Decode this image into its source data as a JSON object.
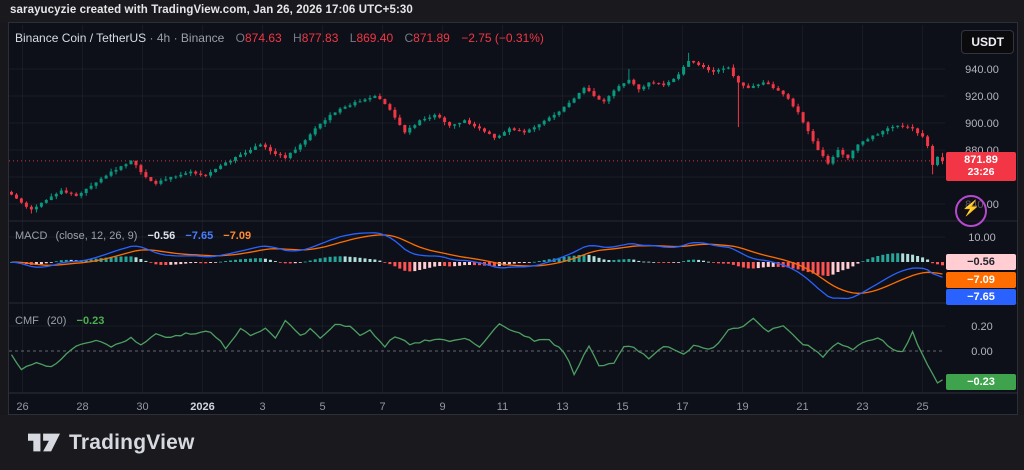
{
  "watermark": "sarayucyzie created with TradingView.com, Jan 26, 2026 17:06 UTC+5:30",
  "symbol_bar": {
    "symbol": "Binance Coin / TetherUS",
    "separator": "·",
    "interval": "4h",
    "exchange": "Binance",
    "ohlc": {
      "o_label": "O",
      "o": "874.63",
      "h_label": "H",
      "h": "877.83",
      "l_label": "L",
      "l": "869.40",
      "c_label": "C",
      "c": "871.89",
      "change": "−2.75 (−0.31%)"
    }
  },
  "currency_button": "USDT",
  "price_badge": {
    "price": "871.89",
    "countdown": "23:26"
  },
  "macd": {
    "title": "MACD",
    "params": "(close, 12, 26, 9)",
    "hist_value": "−0.56",
    "macd_value": "−7.65",
    "signal_value": "−7.09",
    "badges": {
      "hist": "−0.56",
      "signal": "−7.09",
      "macd": "−7.65"
    }
  },
  "cmf": {
    "title": "CMF",
    "params": "(20)",
    "value": "−0.23",
    "badge": "−0.23"
  },
  "footer": {
    "brand": "TradingView"
  },
  "colors": {
    "up": "#089981",
    "down": "#f23645",
    "macd_line": "#2962ff",
    "signal_line": "#ff6d00",
    "hist_grow_up": "#26a69a",
    "hist_fall_up": "#b2dfdb",
    "hist_grow_dn": "#ff5252",
    "hist_fall_dn": "#ffcdd2",
    "cmf_line": "#4e9e62",
    "cmf_badge_bg": "#3fa34d",
    "badge_hist_bg": "#ffcdd2",
    "badge_hist_text": "#1e222d",
    "axis_text": "#b2b5be",
    "grid": "rgba(170,180,200,0.07)",
    "price_line": "#f23645"
  },
  "chart_data": {
    "type": "candlestick",
    "title": "Binance Coin / TetherUS · 4h · Binance",
    "legend_position": "top-left",
    "grid": "faint",
    "bars_total": 188,
    "x_axis": {
      "tick_labels": [
        "26",
        "28",
        "30",
        "2026",
        "3",
        "5",
        "7",
        "9",
        "11",
        "13",
        "15",
        "17",
        "19",
        "21",
        "23",
        "25"
      ],
      "year_tick_index": 3,
      "bars_per_tick": 12
    },
    "price_pane": {
      "ylim": [
        833,
        955
      ],
      "y_ticks": [
        940,
        920,
        900,
        880,
        840
      ],
      "y_tick_labels": [
        "940.00",
        "920.00",
        "900.00",
        "880.00",
        "840.00"
      ],
      "current_price": 871.89,
      "last_bar": {
        "open": 874.63,
        "high": 877.83,
        "low": 869.4,
        "close": 871.89
      },
      "close_keyframes": [
        [
          0,
          847
        ],
        [
          2,
          841
        ],
        [
          4,
          836
        ],
        [
          7,
          843
        ],
        [
          10,
          850
        ],
        [
          13,
          846
        ],
        [
          17,
          856
        ],
        [
          20,
          864
        ],
        [
          24,
          872
        ],
        [
          27,
          860
        ],
        [
          29,
          855
        ],
        [
          32,
          860
        ],
        [
          36,
          864
        ],
        [
          39,
          861
        ],
        [
          41,
          866
        ],
        [
          44,
          872
        ],
        [
          47,
          878
        ],
        [
          50,
          884
        ],
        [
          53,
          877
        ],
        [
          55,
          874
        ],
        [
          58,
          884
        ],
        [
          61,
          896
        ],
        [
          64,
          906
        ],
        [
          67,
          912
        ],
        [
          70,
          916
        ],
        [
          73,
          920
        ],
        [
          75,
          914
        ],
        [
          77,
          904
        ],
        [
          79,
          893
        ],
        [
          82,
          902
        ],
        [
          85,
          906
        ],
        [
          88,
          898
        ],
        [
          91,
          902
        ],
        [
          94,
          896
        ],
        [
          97,
          889
        ],
        [
          100,
          896
        ],
        [
          103,
          893
        ],
        [
          106,
          899
        ],
        [
          109,
          906
        ],
        [
          112,
          915
        ],
        [
          115,
          926
        ],
        [
          117,
          920
        ],
        [
          119,
          916
        ],
        [
          121,
          924
        ],
        [
          124,
          932
        ],
        [
          126,
          925
        ],
        [
          128,
          930
        ],
        [
          131,
          928
        ],
        [
          134,
          936
        ],
        [
          136,
          946
        ],
        [
          138,
          943
        ],
        [
          141,
          938
        ],
        [
          144,
          941
        ],
        [
          146,
          930
        ],
        [
          148,
          926
        ],
        [
          151,
          930
        ],
        [
          154,
          924
        ],
        [
          156,
          918
        ],
        [
          158,
          908
        ],
        [
          160,
          894
        ],
        [
          162,
          880
        ],
        [
          164,
          870
        ],
        [
          166,
          880
        ],
        [
          168,
          874
        ],
        [
          170,
          884
        ],
        [
          172,
          888
        ],
        [
          175,
          894
        ],
        [
          178,
          898
        ],
        [
          181,
          896
        ],
        [
          183,
          890
        ],
        [
          184,
          883
        ],
        [
          185,
          869
        ],
        [
          186,
          875
        ],
        [
          187,
          871.89
        ]
      ],
      "wick_overrides": [
        {
          "i": 4,
          "low": 833
        },
        {
          "i": 124,
          "high": 940
        },
        {
          "i": 136,
          "high": 952
        },
        {
          "i": 146,
          "low": 897
        },
        {
          "i": 185,
          "low": 862
        }
      ]
    },
    "macd_pane": {
      "params": [
        12,
        26,
        9
      ],
      "macd": -7.65,
      "signal": -7.09,
      "histogram": -0.56,
      "y_ticks": [
        10
      ],
      "y_tick_labels": [
        "10.00"
      ]
    },
    "cmf_pane": {
      "period": 20,
      "value": -0.23,
      "y_ticks": [
        0.2,
        0
      ],
      "y_tick_labels": [
        "0.20",
        "0.00"
      ],
      "keyframes": [
        [
          0,
          -0.03
        ],
        [
          2,
          -0.14
        ],
        [
          5,
          -0.1
        ],
        [
          8,
          -0.13
        ],
        [
          11,
          -0.02
        ],
        [
          14,
          0.06
        ],
        [
          17,
          0.09
        ],
        [
          20,
          0.03
        ],
        [
          24,
          0.1
        ],
        [
          26,
          0.04
        ],
        [
          29,
          0.14
        ],
        [
          31,
          0.11
        ],
        [
          34,
          0.12
        ],
        [
          35,
          0.15
        ],
        [
          37,
          0.13
        ],
        [
          39,
          0.16
        ],
        [
          41,
          0.12
        ],
        [
          43,
          0.02
        ],
        [
          46,
          0.17
        ],
        [
          48,
          0.13
        ],
        [
          51,
          0.18
        ],
        [
          53,
          0.1
        ],
        [
          55,
          0.25
        ],
        [
          58,
          0.12
        ],
        [
          60,
          0.17
        ],
        [
          62,
          0.1
        ],
        [
          65,
          0.22
        ],
        [
          68,
          0.2
        ],
        [
          70,
          0.13
        ],
        [
          72,
          0.17
        ],
        [
          75,
          0.04
        ],
        [
          77,
          0.12
        ],
        [
          80,
          0.05
        ],
        [
          82,
          0.07
        ],
        [
          85,
          0.1
        ],
        [
          88,
          0.07
        ],
        [
          91,
          0.11
        ],
        [
          94,
          0.04
        ],
        [
          98,
          0.21
        ],
        [
          101,
          0.16
        ],
        [
          105,
          0.08
        ],
        [
          108,
          0.09
        ],
        [
          111,
          -0.01
        ],
        [
          113,
          -0.18
        ],
        [
          116,
          0.04
        ],
        [
          118,
          -0.11
        ],
        [
          121,
          -0.1
        ],
        [
          123,
          0.04
        ],
        [
          125,
          0.03
        ],
        [
          128,
          -0.06
        ],
        [
          131,
          0.04
        ],
        [
          135,
          -0.03
        ],
        [
          137,
          0.04
        ],
        [
          141,
          0.02
        ],
        [
          144,
          0.16
        ],
        [
          147,
          0.2
        ],
        [
          149,
          0.26
        ],
        [
          152,
          0.16
        ],
        [
          155,
          0.2
        ],
        [
          158,
          0.08
        ],
        [
          161,
          0.02
        ],
        [
          163,
          -0.05
        ],
        [
          166,
          0.07
        ],
        [
          169,
          0.02
        ],
        [
          171,
          0.07
        ],
        [
          174,
          0.11
        ],
        [
          177,
          0.02
        ],
        [
          179,
          -0.01
        ],
        [
          181,
          0.15
        ],
        [
          184,
          -0.12
        ],
        [
          186,
          -0.26
        ],
        [
          187,
          -0.23
        ]
      ]
    }
  }
}
